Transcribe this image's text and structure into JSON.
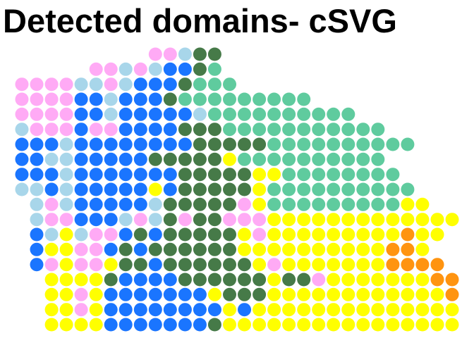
{
  "chart_data": {
    "type": "scatter",
    "title": "Detected domains- cSVG",
    "xlabel": "",
    "ylabel": "",
    "grid": false,
    "legend": "none",
    "domain_colors": {
      "P": "#ffaaf5",
      "L": "#a8d6ea",
      "B": "#1a75ff",
      "G": "#467a48",
      "T": "#5fcb9e",
      "Y": "#ffff00",
      "O": "#ff9410"
    },
    "x_range": [
      0,
      29
    ],
    "y_range": [
      0,
      18
    ],
    "rows": [
      {
        "y": 0,
        "x_start": 9,
        "domains": "PPLGG"
      },
      {
        "y": 1,
        "x_start": 5,
        "domains": "PPLPLBBGT"
      },
      {
        "y": 2,
        "x_start": 0,
        "domains": "PPPPLLPLBBBGTTT"
      },
      {
        "y": 3,
        "x_start": 0,
        "domains": "PPPPBBLBBBGTTTTTTTTT"
      },
      {
        "y": 4,
        "x_start": 0,
        "domains": "PPPPBBLBBBBBLTTTTTTTTTT"
      },
      {
        "y": 5,
        "x_start": 0,
        "domains": "LPPPBPPBBBBGGGTTTTTTTTTTT"
      },
      {
        "y": 6,
        "x_start": 0,
        "domains": "BBBLBBBBBBBBGGGGGTTTTTTTTTT"
      },
      {
        "y": 7,
        "x_start": 0,
        "domains": "BBLLBBBBBGGGGGYTTTTTTTTTT"
      },
      {
        "y": 8,
        "x_start": 0,
        "domains": "BBBLBBBBBBBGGGGGYYTTTTTTTT"
      },
      {
        "y": 9,
        "x_start": 0,
        "domains": "LLBLBBBBBYBGGGGGYTTTTTTTTTT"
      },
      {
        "y": 10,
        "x_start": 1,
        "domains": "LPLBBBBBLGGGGGPYTTTTTTTTTYY"
      },
      {
        "y": 11,
        "x_start": 1,
        "domains": "LPPBBBLPLGPGGPPPYYYYYYYYYYYYY"
      },
      {
        "y": 12,
        "x_start": 1,
        "domains": "BLYLPPBGBGGGGGYPYYYYYYYYYOYY"
      },
      {
        "y": 13,
        "x_start": 1,
        "domains": "BYYPPBGBGGGGGGYYYYYYYYYYOOY"
      },
      {
        "y": 14,
        "x_start": 1,
        "domains": "BPYPPYGGBGGGGGGYPYYYYYYYOOOO"
      },
      {
        "y": 15,
        "x_start": 2,
        "domains": "YYYYGBBBBGGGGGGYGGPYYYYYYYOO"
      },
      {
        "y": 16,
        "x_start": 2,
        "domains": "YYPYBBBBBBBYGGGYYYYYYYYYYYYO"
      },
      {
        "y": 17,
        "x_start": 2,
        "domains": "YYPYBBBBBBBBYBYYYYYYYYYYYYYYYY"
      },
      {
        "y": 18,
        "x_start": 2,
        "domains": "YYYYBBBBBBBGYYYYYYYYYYYYYYYYB"
      }
    ]
  }
}
